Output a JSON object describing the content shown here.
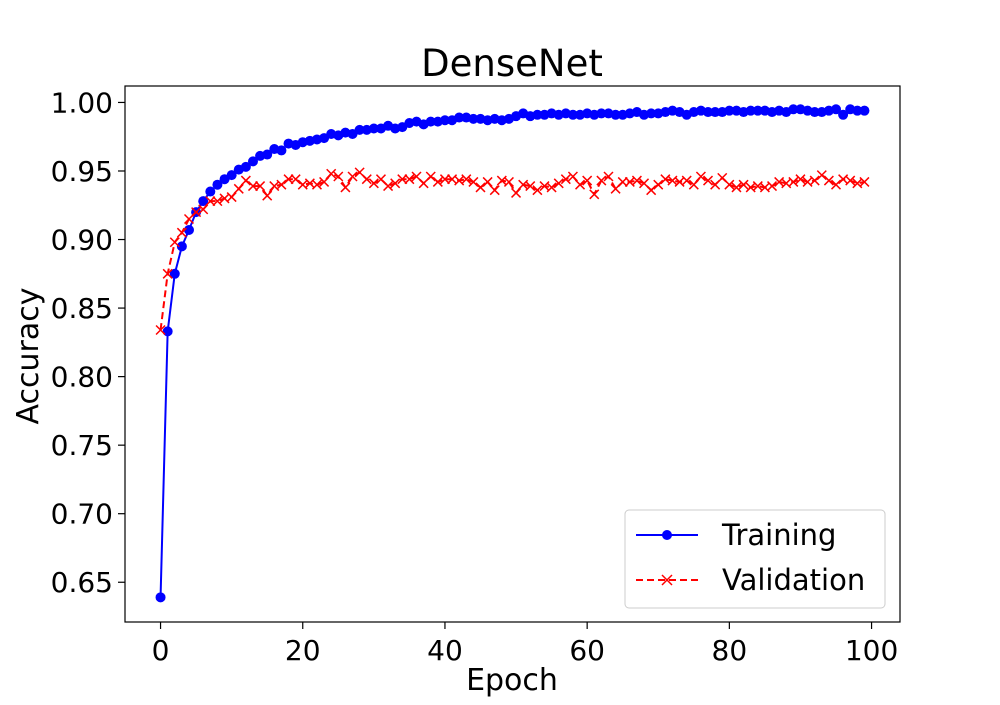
{
  "chart_data": {
    "type": "line",
    "title": "DenseNet",
    "xlabel": "Epoch",
    "ylabel": "Accuracy",
    "xlim": [
      -5,
      104
    ],
    "ylim": [
      0.621,
      1.012
    ],
    "xticks": [
      0,
      20,
      40,
      60,
      80,
      100
    ],
    "xtick_labels": [
      "0",
      "20",
      "40",
      "60",
      "80",
      "100"
    ],
    "yticks": [
      0.65,
      0.7,
      0.75,
      0.8,
      0.85,
      0.9,
      0.95,
      1.0
    ],
    "ytick_labels": [
      "0.65",
      "0.70",
      "0.75",
      "0.80",
      "0.85",
      "0.90",
      "0.95",
      "1.00"
    ],
    "grid": false,
    "legend_position": "lower-right",
    "series": [
      {
        "name": "Training",
        "color": "#0000ff",
        "marker": "circle",
        "linestyle": "solid",
        "x": [
          0,
          1,
          2,
          3,
          4,
          5,
          6,
          7,
          8,
          9,
          10,
          11,
          12,
          13,
          14,
          15,
          16,
          17,
          18,
          19,
          20,
          21,
          22,
          23,
          24,
          25,
          26,
          27,
          28,
          29,
          30,
          31,
          32,
          33,
          34,
          35,
          36,
          37,
          38,
          39,
          40,
          41,
          42,
          43,
          44,
          45,
          46,
          47,
          48,
          49,
          50,
          51,
          52,
          53,
          54,
          55,
          56,
          57,
          58,
          59,
          60,
          61,
          62,
          63,
          64,
          65,
          66,
          67,
          68,
          69,
          70,
          71,
          72,
          73,
          74,
          75,
          76,
          77,
          78,
          79,
          80,
          81,
          82,
          83,
          84,
          85,
          86,
          87,
          88,
          89,
          90,
          91,
          92,
          93,
          94,
          95,
          96,
          97,
          98,
          99
        ],
        "values": [
          0.639,
          0.833,
          0.875,
          0.895,
          0.907,
          0.92,
          0.928,
          0.935,
          0.94,
          0.944,
          0.947,
          0.951,
          0.953,
          0.957,
          0.961,
          0.962,
          0.966,
          0.965,
          0.97,
          0.969,
          0.971,
          0.972,
          0.973,
          0.974,
          0.977,
          0.976,
          0.978,
          0.977,
          0.98,
          0.98,
          0.981,
          0.981,
          0.983,
          0.981,
          0.982,
          0.985,
          0.986,
          0.984,
          0.986,
          0.986,
          0.987,
          0.987,
          0.989,
          0.989,
          0.988,
          0.988,
          0.987,
          0.988,
          0.987,
          0.988,
          0.99,
          0.992,
          0.99,
          0.991,
          0.991,
          0.992,
          0.991,
          0.992,
          0.991,
          0.991,
          0.992,
          0.991,
          0.992,
          0.992,
          0.991,
          0.991,
          0.992,
          0.993,
          0.991,
          0.992,
          0.992,
          0.993,
          0.994,
          0.993,
          0.991,
          0.993,
          0.994,
          0.993,
          0.993,
          0.993,
          0.994,
          0.994,
          0.993,
          0.994,
          0.994,
          0.994,
          0.993,
          0.994,
          0.993,
          0.995,
          0.995,
          0.994,
          0.993,
          0.993,
          0.994,
          0.995,
          0.991,
          0.995,
          0.994,
          0.994
        ]
      },
      {
        "name": "Validation",
        "color": "#ff0000",
        "marker": "x",
        "linestyle": "dashed",
        "x": [
          0,
          1,
          2,
          3,
          4,
          5,
          6,
          7,
          8,
          9,
          10,
          11,
          12,
          13,
          14,
          15,
          16,
          17,
          18,
          19,
          20,
          21,
          22,
          23,
          24,
          25,
          26,
          27,
          28,
          29,
          30,
          31,
          32,
          33,
          34,
          35,
          36,
          37,
          38,
          39,
          40,
          41,
          42,
          43,
          44,
          45,
          46,
          47,
          48,
          49,
          50,
          51,
          52,
          53,
          54,
          55,
          56,
          57,
          58,
          59,
          60,
          61,
          62,
          63,
          64,
          65,
          66,
          67,
          68,
          69,
          70,
          71,
          72,
          73,
          74,
          75,
          76,
          77,
          78,
          79,
          80,
          81,
          82,
          83,
          84,
          85,
          86,
          87,
          88,
          89,
          90,
          91,
          92,
          93,
          94,
          95,
          96,
          97,
          98,
          99
        ],
        "values": [
          0.834,
          0.875,
          0.898,
          0.905,
          0.915,
          0.92,
          0.922,
          0.928,
          0.928,
          0.93,
          0.931,
          0.937,
          0.943,
          0.939,
          0.939,
          0.932,
          0.939,
          0.94,
          0.944,
          0.944,
          0.94,
          0.941,
          0.94,
          0.942,
          0.948,
          0.946,
          0.938,
          0.946,
          0.949,
          0.944,
          0.941,
          0.944,
          0.939,
          0.941,
          0.944,
          0.944,
          0.946,
          0.941,
          0.946,
          0.942,
          0.944,
          0.944,
          0.943,
          0.944,
          0.942,
          0.938,
          0.942,
          0.936,
          0.943,
          0.942,
          0.934,
          0.94,
          0.939,
          0.936,
          0.939,
          0.938,
          0.941,
          0.944,
          0.946,
          0.94,
          0.943,
          0.933,
          0.943,
          0.946,
          0.937,
          0.942,
          0.942,
          0.943,
          0.941,
          0.936,
          0.94,
          0.944,
          0.943,
          0.942,
          0.943,
          0.94,
          0.946,
          0.943,
          0.94,
          0.945,
          0.94,
          0.938,
          0.94,
          0.938,
          0.939,
          0.938,
          0.939,
          0.942,
          0.941,
          0.942,
          0.944,
          0.942,
          0.943,
          0.947,
          0.943,
          0.94,
          0.944,
          0.943,
          0.941,
          0.942
        ]
      }
    ]
  }
}
